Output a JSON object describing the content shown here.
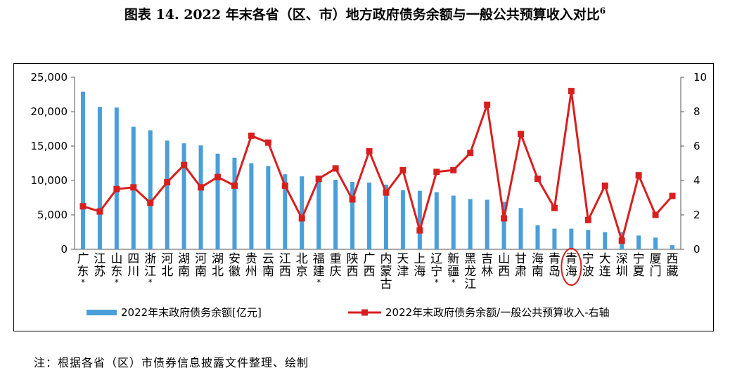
{
  "title": "图表 14. 2022 年末各省（区、市）地方政府债务余额与一般公共预算收入对比",
  "title_sup": "6",
  "note": "注：根据各省（区）市债券信息披露文件整理、绘制",
  "chart_data": {
    "type": "bar",
    "categories": [
      "广东*",
      "江苏",
      "山东*",
      "四川",
      "浙江*",
      "河北",
      "湖南",
      "河南",
      "湖北",
      "安徽",
      "贵州",
      "云南",
      "江西",
      "北京",
      "福建*",
      "重庆",
      "陕西",
      "广西",
      "内蒙古",
      "天津",
      "上海",
      "辽宁*",
      "新疆*",
      "黑龙江",
      "吉林",
      "山西",
      "甘肃",
      "海南",
      "青岛",
      "青海",
      "宁波",
      "大连",
      "深圳",
      "宁夏",
      "厦门",
      "西藏"
    ],
    "series": [
      {
        "name": "2022年末政府债务余额[亿元]",
        "axis": "left",
        "type": "bar",
        "color": "#4a9fd8",
        "values": [
          22900,
          20700,
          20600,
          17800,
          17300,
          15800,
          15400,
          15100,
          13900,
          13300,
          12500,
          12100,
          10900,
          10600,
          10100,
          10100,
          9800,
          9700,
          9400,
          8600,
          8500,
          8300,
          7800,
          7300,
          7200,
          6900,
          6000,
          3500,
          3000,
          3000,
          2800,
          2500,
          2500,
          2000,
          1700,
          600
        ]
      },
      {
        "name": "2022年末政府债务余额/一般公共预算收入-右轴",
        "axis": "right",
        "type": "line",
        "color": "#d81f1f",
        "values": [
          2.5,
          2.2,
          3.5,
          3.6,
          2.7,
          3.9,
          4.9,
          3.6,
          4.2,
          3.7,
          6.6,
          6.2,
          3.7,
          1.8,
          4.1,
          4.7,
          2.9,
          5.7,
          3.3,
          4.6,
          1.1,
          4.5,
          4.6,
          5.6,
          8.4,
          1.8,
          6.7,
          4.1,
          2.4,
          9.2,
          1.7,
          3.7,
          0.5,
          4.3,
          2.0,
          3.1
        ]
      }
    ],
    "y_left": {
      "min": 0,
      "max": 25000,
      "ticks": [
        "0",
        "5,000",
        "10,000",
        "15,000",
        "20,000",
        "25,000"
      ]
    },
    "y_right": {
      "min": 0,
      "max": 10,
      "ticks": [
        "0",
        "2",
        "4",
        "6",
        "8",
        "10"
      ]
    },
    "legend": [
      "2022年末政府债务余额[亿元]",
      "2022年末政府债务余额/一般公共预算收入-右轴"
    ],
    "highlight_category": "青海",
    "highlight_color": "#d81f1f"
  }
}
